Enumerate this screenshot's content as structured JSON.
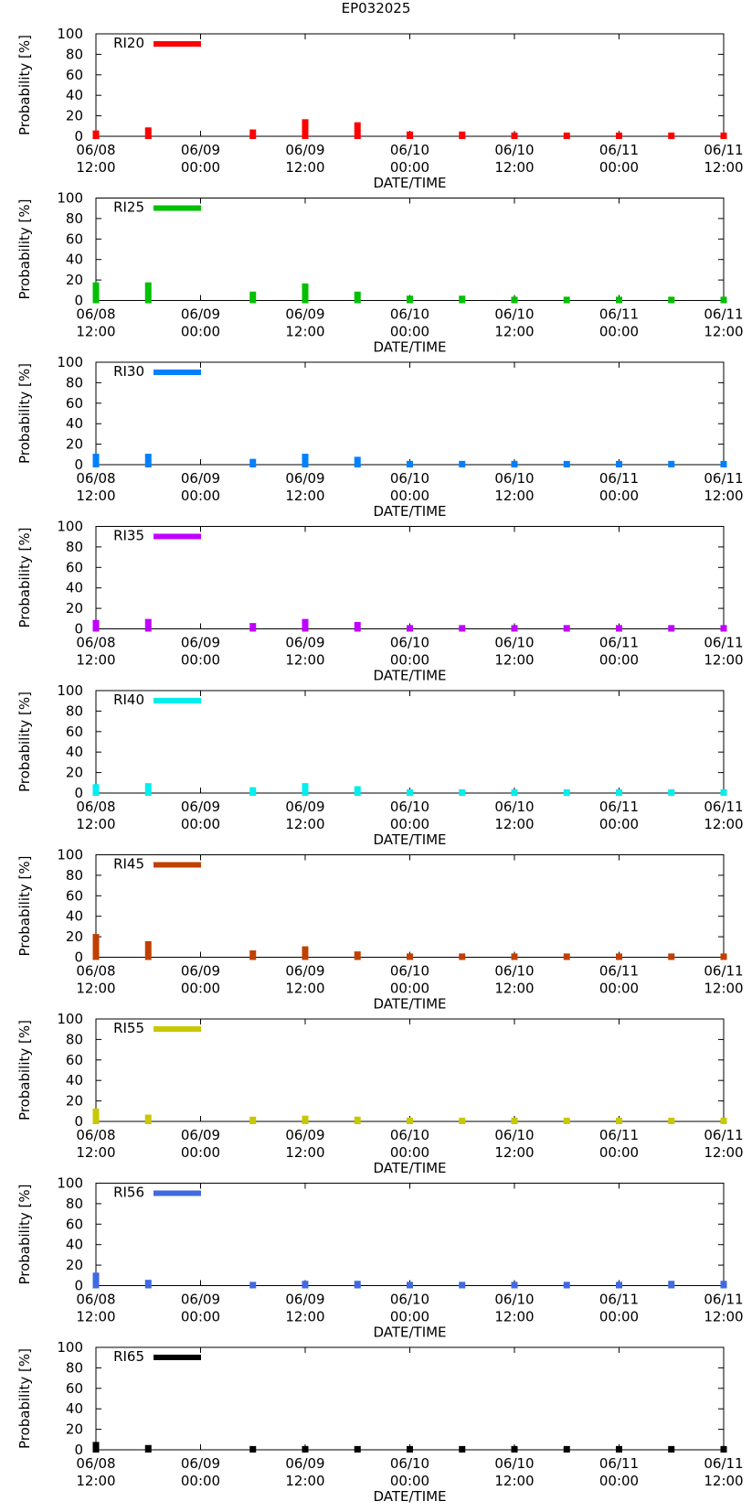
{
  "title": "EP032025",
  "xlabel": "DATE/TIME",
  "ylabel": "Probability [%]",
  "x_ticks": [
    {
      "line1": "06/08",
      "line2": "12:00"
    },
    {
      "line1": "06/09",
      "line2": "00:00"
    },
    {
      "line1": "06/09",
      "line2": "12:00"
    },
    {
      "line1": "06/10",
      "line2": "00:00"
    },
    {
      "line1": "06/10",
      "line2": "12:00"
    },
    {
      "line1": "06/11",
      "line2": "00:00"
    },
    {
      "line1": "06/11",
      "line2": "12:00"
    }
  ],
  "y_ticks": [
    "0",
    "20",
    "40",
    "60",
    "80",
    "100"
  ],
  "chart_data": [
    {
      "type": "bar",
      "legend": "RI20",
      "color": "#ff0000",
      "ylim": [
        0,
        100
      ],
      "xlim_hours": [
        0,
        72
      ],
      "x_hours": [
        0,
        6,
        12,
        18,
        24,
        30,
        36,
        42,
        48,
        54,
        60,
        66,
        72
      ],
      "values": [
        3,
        6,
        0,
        4,
        14,
        11,
        2,
        2,
        1,
        1,
        1,
        1,
        1
      ]
    },
    {
      "type": "bar",
      "legend": "RI25",
      "color": "#00c000",
      "ylim": [
        0,
        100
      ],
      "xlim_hours": [
        0,
        72
      ],
      "x_hours": [
        0,
        6,
        12,
        18,
        24,
        30,
        36,
        42,
        48,
        54,
        60,
        66,
        72
      ],
      "values": [
        15,
        15,
        0,
        6,
        14,
        6,
        2,
        2,
        1,
        1,
        1,
        1,
        1
      ]
    },
    {
      "type": "bar",
      "legend": "RI30",
      "color": "#0080ff",
      "ylim": [
        0,
        100
      ],
      "xlim_hours": [
        0,
        72
      ],
      "x_hours": [
        0,
        6,
        12,
        18,
        24,
        30,
        36,
        42,
        48,
        54,
        60,
        66,
        72
      ],
      "values": [
        8,
        8,
        0,
        3,
        8,
        5,
        1,
        1,
        1,
        1,
        1,
        1,
        1
      ]
    },
    {
      "type": "bar",
      "legend": "RI35",
      "color": "#c000ff",
      "ylim": [
        0,
        100
      ],
      "xlim_hours": [
        0,
        72
      ],
      "x_hours": [
        0,
        6,
        12,
        18,
        24,
        30,
        36,
        42,
        48,
        54,
        60,
        66,
        72
      ],
      "values": [
        6,
        7,
        0,
        3,
        7,
        4,
        1,
        1,
        1,
        1,
        1,
        1,
        1
      ]
    },
    {
      "type": "bar",
      "legend": "RI40",
      "color": "#00eeee",
      "ylim": [
        0,
        100
      ],
      "xlim_hours": [
        0,
        72
      ],
      "x_hours": [
        0,
        6,
        12,
        18,
        24,
        30,
        36,
        42,
        48,
        54,
        60,
        66,
        72
      ],
      "values": [
        6,
        7,
        0,
        3,
        7,
        4,
        1,
        1,
        1,
        1,
        1,
        1,
        1
      ]
    },
    {
      "type": "bar",
      "legend": "RI45",
      "color": "#c04000",
      "ylim": [
        0,
        100
      ],
      "xlim_hours": [
        0,
        72
      ],
      "x_hours": [
        0,
        6,
        12,
        18,
        24,
        30,
        36,
        42,
        48,
        54,
        60,
        66,
        72
      ],
      "values": [
        20,
        13,
        0,
        4,
        8,
        3,
        1,
        1,
        1,
        1,
        1,
        1,
        1
      ]
    },
    {
      "type": "bar",
      "legend": "RI55",
      "color": "#c8c800",
      "ylim": [
        0,
        100
      ],
      "xlim_hours": [
        0,
        72
      ],
      "x_hours": [
        0,
        6,
        12,
        18,
        24,
        30,
        36,
        42,
        48,
        54,
        60,
        66,
        72
      ],
      "values": [
        10,
        4,
        0,
        2,
        3,
        2,
        1,
        1,
        1,
        1,
        1,
        1,
        1
      ]
    },
    {
      "type": "bar",
      "legend": "RI56",
      "color": "#4169e1",
      "ylim": [
        0,
        100
      ],
      "xlim_hours": [
        0,
        72
      ],
      "x_hours": [
        0,
        6,
        12,
        18,
        24,
        30,
        36,
        42,
        48,
        54,
        60,
        66,
        72
      ],
      "values": [
        10,
        3,
        0,
        1,
        2,
        2,
        1,
        1,
        1,
        1,
        1,
        2,
        2
      ]
    },
    {
      "type": "bar",
      "legend": "RI65",
      "color": "#000000",
      "ylim": [
        0,
        100
      ],
      "xlim_hours": [
        0,
        72
      ],
      "x_hours": [
        0,
        6,
        12,
        18,
        24,
        30,
        36,
        42,
        48,
        54,
        60,
        66,
        72
      ],
      "values": [
        5,
        2,
        0,
        1,
        1,
        1,
        1,
        1,
        1,
        1,
        1,
        1,
        1
      ]
    }
  ]
}
